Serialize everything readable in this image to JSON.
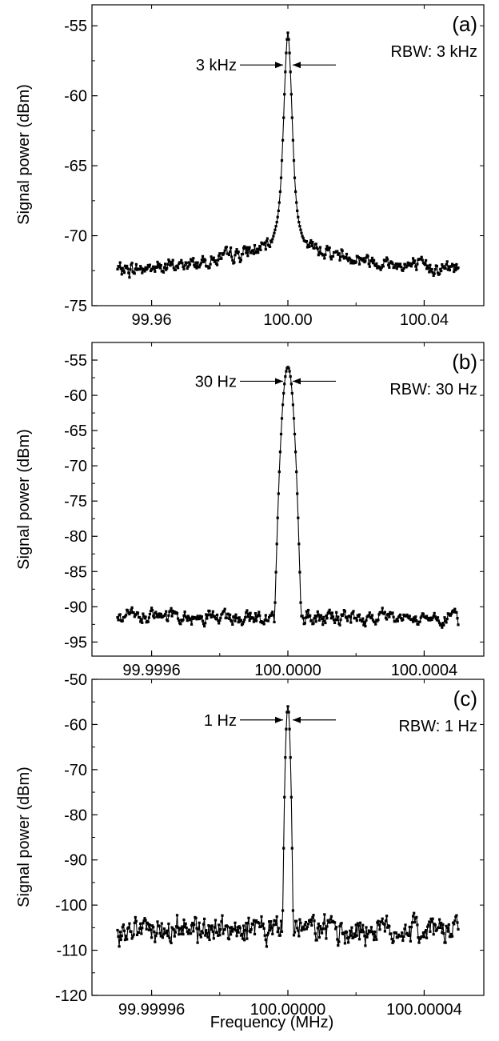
{
  "figure": {
    "xlabel": "Frequency  (MHz)"
  },
  "chart_data": [
    {
      "panel_label": "(a)",
      "type": "line",
      "ylabel": "Signal power (dBm)",
      "rbw_label": "RBW: 3 kHz",
      "width_label": "3 kHz",
      "xlim": [
        99.9425,
        100.0575
      ],
      "ylim": [
        -75,
        -53.5
      ],
      "x_ticks": [
        99.96,
        100.0,
        100.04
      ],
      "x_tick_labels": [
        "99.96",
        "100.00",
        "100.04"
      ],
      "y_ticks": [
        -75,
        -70,
        -65,
        -60,
        -55
      ],
      "y_tick_labels": [
        "-75",
        "-70",
        "-65",
        "-60",
        "-55"
      ],
      "x_start": 99.95,
      "x_end": 100.05,
      "center": 100.0,
      "peak_y": -55.5,
      "floor_left": -72.4,
      "floor_center": -70.3,
      "floor_right": -72.3,
      "peak_halfwidth": 0.0016,
      "noise_amplitude": 0.5,
      "shape": "lorentz-skirt",
      "n_points": 401,
      "width_marker_y": -57.8,
      "series": [
        {
          "values": []
        }
      ]
    },
    {
      "panel_label": "(b)",
      "type": "line",
      "ylabel": "Signal power (dBm)",
      "rbw_label": "RBW: 30 Hz",
      "width_label": "30 Hz",
      "xlim": [
        99.999425,
        100.000575
      ],
      "ylim": [
        -97,
        -52.5
      ],
      "x_ticks": [
        99.9996,
        100.0,
        100.0004
      ],
      "x_tick_labels": [
        "99.9996",
        "100.0000",
        "100.0004"
      ],
      "y_ticks": [
        -95,
        -90,
        -85,
        -80,
        -75,
        -70,
        -65,
        -60,
        -55
      ],
      "y_tick_labels": [
        "-95",
        "-90",
        "-85",
        "-80",
        "-75",
        "-70",
        "-65",
        "-60",
        "-55"
      ],
      "x_start": 99.9995,
      "x_end": 100.0005,
      "center": 100.0,
      "peak_y": -56,
      "floor_left": -91.5,
      "floor_center": -91.5,
      "floor_right": -91.5,
      "peak_halfwidth": 1.6e-05,
      "noise_amplitude": 1.0,
      "shape": "gaussian",
      "n_points": 401,
      "width_marker_y": -58.0,
      "series": [
        {
          "values": []
        }
      ]
    },
    {
      "panel_label": "(c)",
      "type": "line",
      "ylabel": "Signal power (dBm)",
      "rbw_label": "RBW: 1 Hz",
      "width_label": "1 Hz",
      "xlim": [
        99.9999425,
        100.0000575
      ],
      "ylim": [
        -120,
        -50
      ],
      "x_ticks": [
        99.99996,
        100.0,
        100.00004
      ],
      "x_tick_labels": [
        "99.99996",
        "100.00000",
        "100.00004"
      ],
      "y_ticks": [
        -120,
        -110,
        -100,
        -90,
        -80,
        -70,
        -60,
        -50
      ],
      "y_tick_labels": [
        "-120",
        "-110",
        "-100",
        "-90",
        "-80",
        "-70",
        "-60",
        "-50"
      ],
      "x_start": 99.99995,
      "x_end": 100.00005,
      "center": 100.0,
      "peak_y": -56,
      "floor_left": -105.5,
      "floor_center": -105.5,
      "floor_right": -105.5,
      "peak_halfwidth": 5.5e-07,
      "noise_amplitude": 3.0,
      "shape": "gaussian",
      "n_points": 401,
      "width_marker_y": -59.0,
      "series": [
        {
          "values": []
        }
      ]
    }
  ]
}
